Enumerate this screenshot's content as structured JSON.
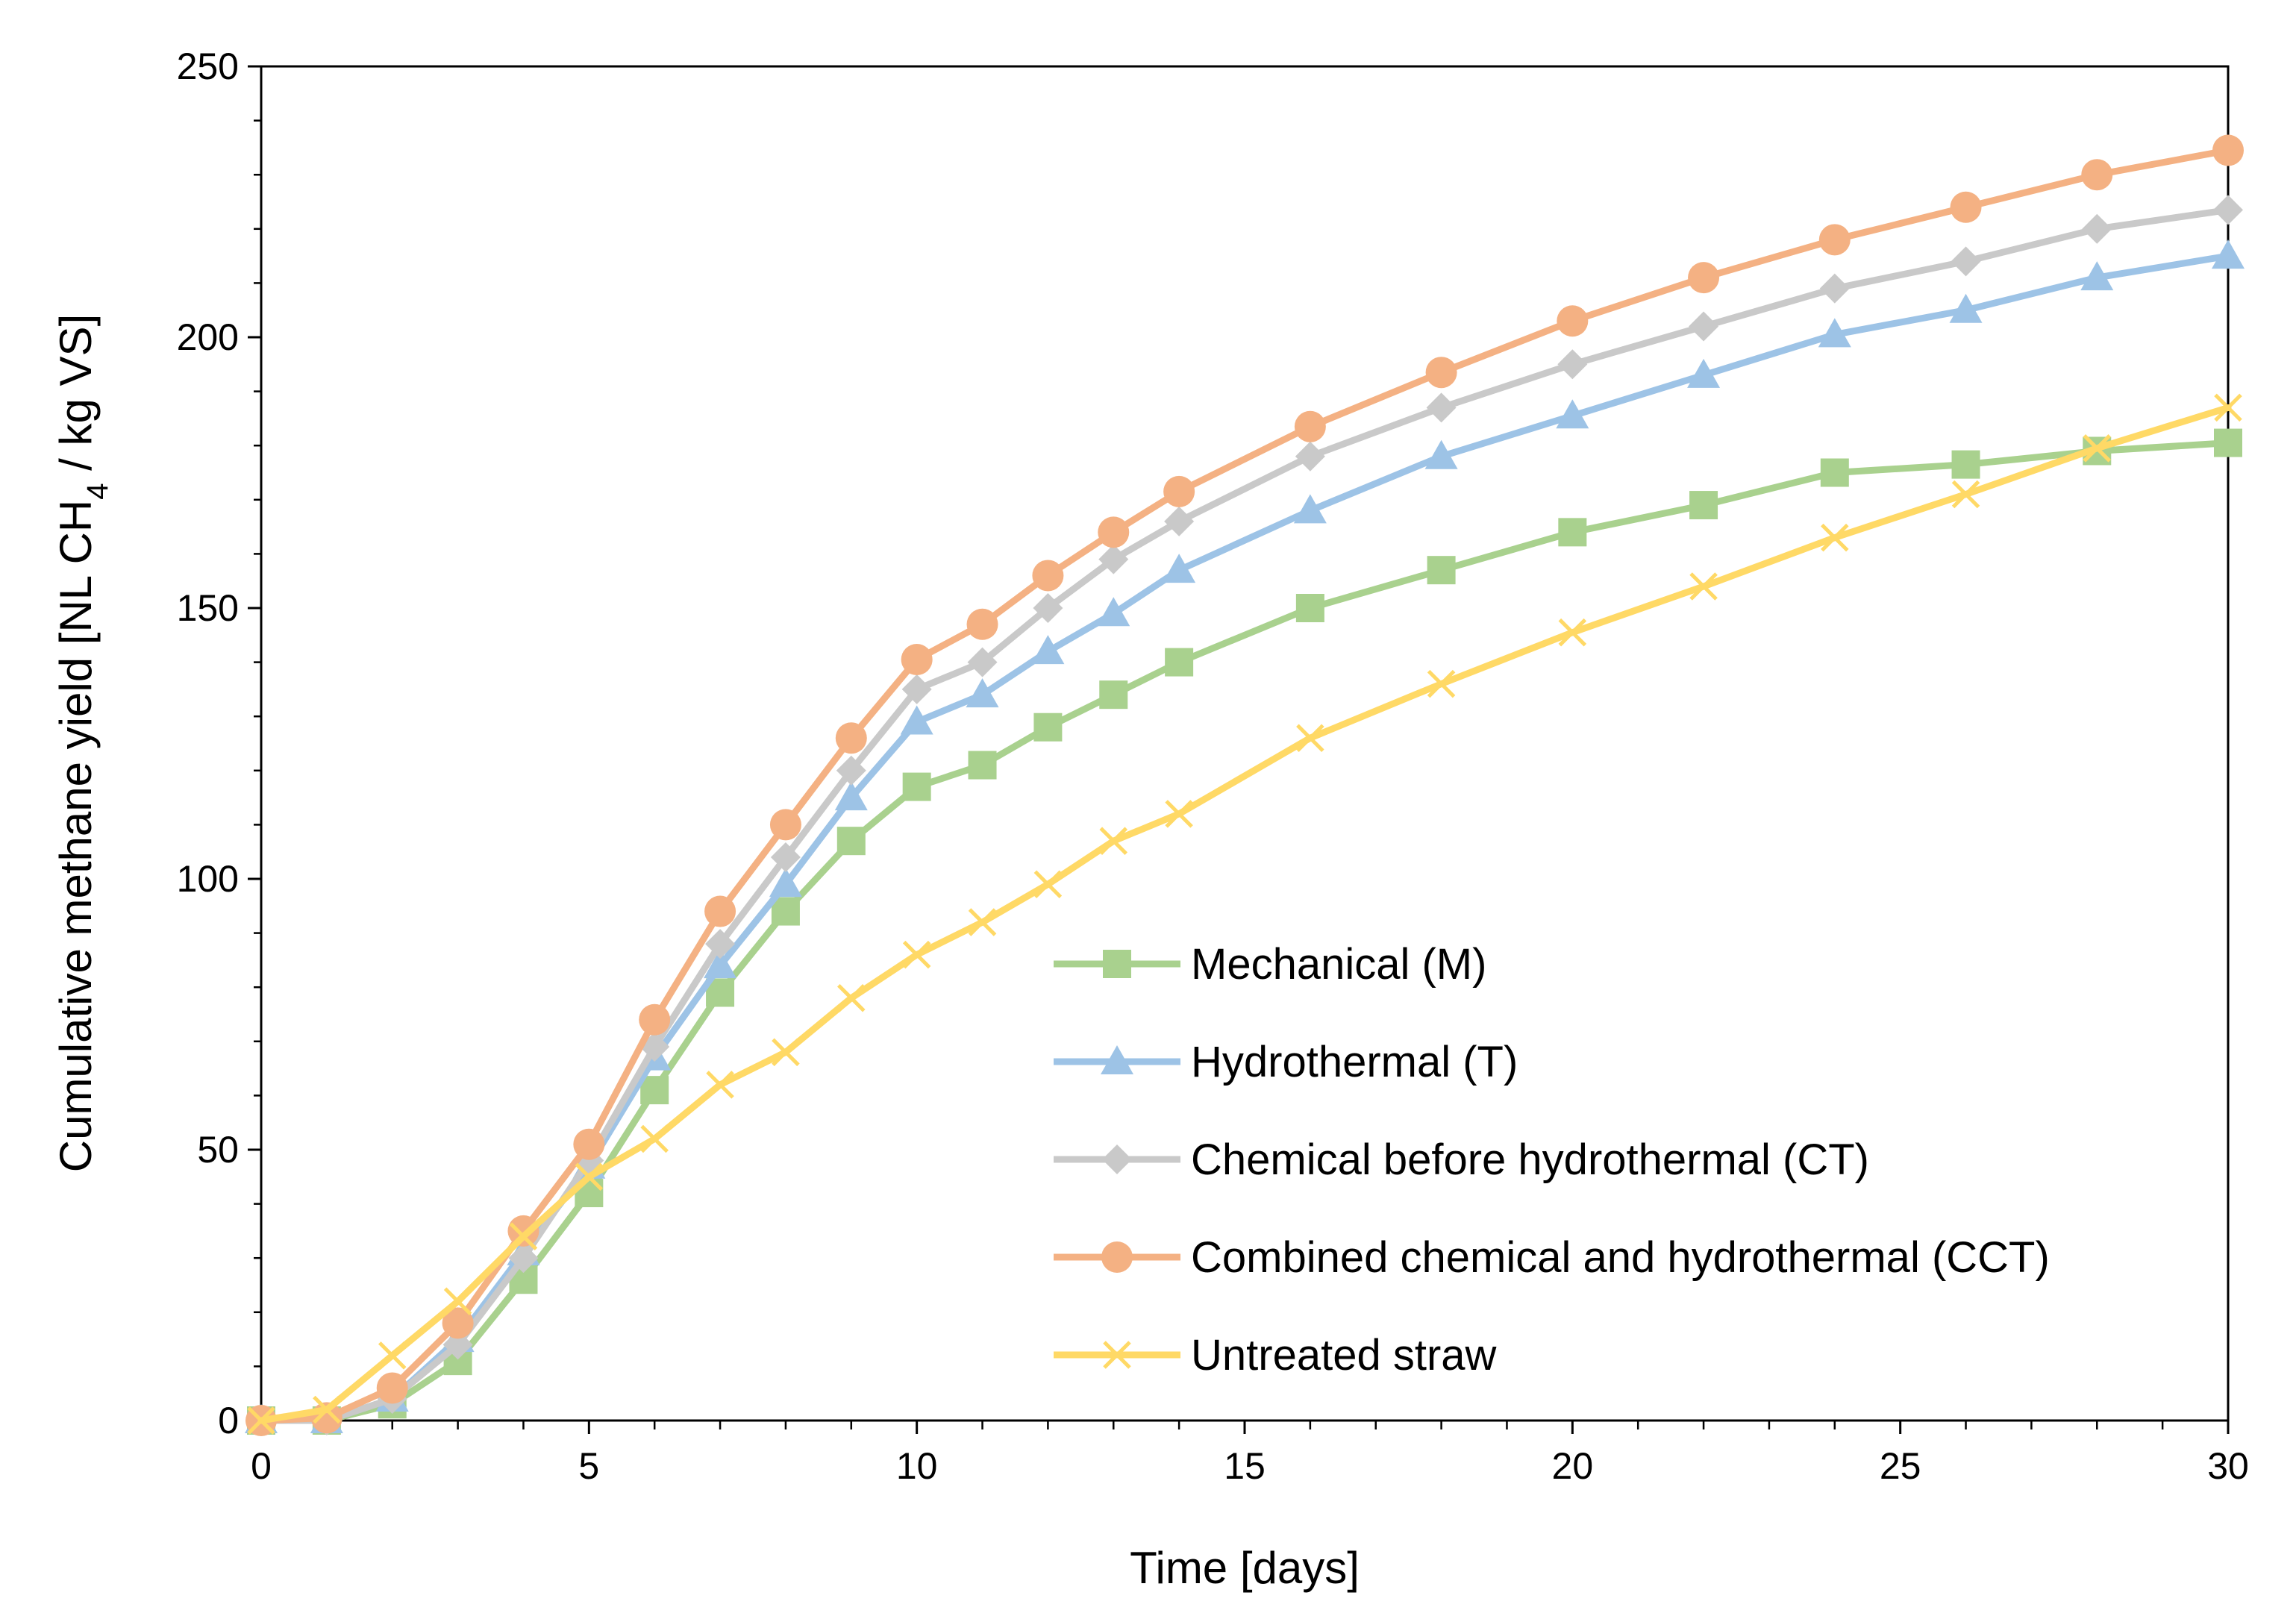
{
  "chart_data": {
    "type": "line",
    "xlabel": "Time [days]",
    "ylabel": {
      "prefix": "Cumulative methane yield [NL CH",
      "subscript": "4",
      "suffix": " / kg VS]"
    },
    "xlim": [
      0,
      30
    ],
    "ylim": [
      0,
      250
    ],
    "x_ticks": [
      0,
      5,
      10,
      15,
      20,
      25,
      30
    ],
    "y_ticks": [
      0,
      50,
      100,
      150,
      200,
      250
    ],
    "x_tick_labels": [
      "0",
      "5",
      "10",
      "15",
      "20",
      "25",
      "30"
    ],
    "y_tick_labels": [
      "0",
      "50",
      "100",
      "150",
      "200",
      "250"
    ],
    "grid": false,
    "legend_position": "lower-right",
    "x": [
      0,
      1,
      2,
      3,
      4,
      5,
      6,
      7,
      8,
      9,
      10,
      11,
      12,
      13,
      14,
      16,
      18,
      20,
      22,
      24,
      26,
      28,
      30
    ],
    "series": [
      {
        "name": "Mechanical (M)",
        "color": "#a9d18e",
        "marker": "square",
        "values": [
          0,
          0,
          3,
          11,
          26,
          42,
          61,
          79,
          94,
          107,
          117,
          121,
          128,
          134,
          140,
          150,
          157,
          164,
          169,
          175,
          176.5,
          179,
          180.5
        ]
      },
      {
        "name": "Hydrothermal (T)",
        "color": "#9dc3e6",
        "marker": "triangle",
        "values": [
          0,
          0,
          4,
          15,
          31,
          47,
          67,
          84,
          99,
          115,
          129,
          134,
          142,
          149,
          157,
          168,
          178,
          185.5,
          193,
          200.5,
          205,
          211,
          215
        ]
      },
      {
        "name": "Chemical before hydrothermal (CT)",
        "color": "#c9c9c9",
        "marker": "diamond",
        "values": [
          0,
          0,
          4,
          14,
          30,
          48,
          69,
          88,
          104,
          120,
          135,
          140,
          150,
          159,
          166,
          178,
          187,
          195,
          202,
          209,
          214,
          220,
          223.5
        ]
      },
      {
        "name": "Combined chemical and hydrothermal (CCT)",
        "color": "#f4b183",
        "marker": "circle",
        "values": [
          0,
          0.5,
          6,
          18,
          35,
          51,
          74,
          94,
          110,
          126,
          140.5,
          147,
          156,
          164,
          171.5,
          183.5,
          193.5,
          203,
          211,
          218,
          224,
          230,
          234.5
        ]
      },
      {
        "name": "Untreated straw",
        "color": "#ffd966",
        "marker": "x",
        "values": [
          0,
          2,
          12,
          22,
          34,
          45,
          52,
          62,
          68,
          78,
          86,
          92,
          99,
          107,
          112,
          126,
          136,
          145.5,
          154,
          163,
          171,
          179.5,
          187
        ]
      }
    ]
  }
}
